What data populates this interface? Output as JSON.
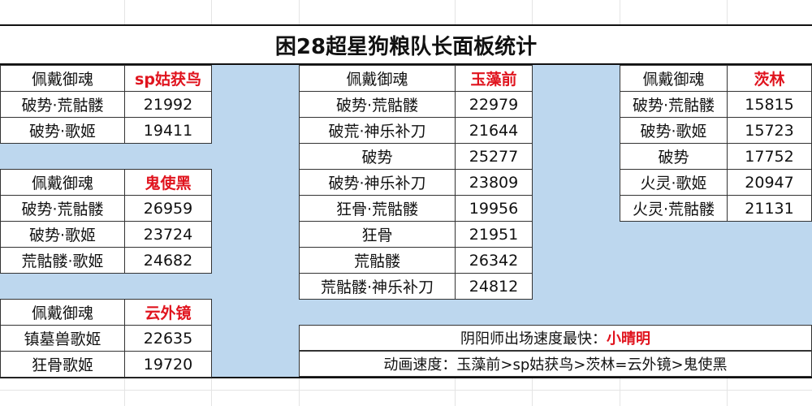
{
  "title": "困28超星狗粮队长面板统计",
  "header_label": "佩戴御魂",
  "tables": [
    {
      "character": "sp姑获鸟",
      "rows": [
        {
          "set": "破势·荒骷髅",
          "value": "21992"
        },
        {
          "set": "破势·歌姬",
          "value": "19411"
        }
      ]
    },
    {
      "character": "鬼使黑",
      "rows": [
        {
          "set": "破势·荒骷髅",
          "value": "26959"
        },
        {
          "set": "破势·歌姬",
          "value": "23724"
        },
        {
          "set": "荒骷髅·歌姬",
          "value": "24682"
        }
      ]
    },
    {
      "character": "云外镜",
      "rows": [
        {
          "set": "镇墓兽歌姬",
          "value": "22635"
        },
        {
          "set": "狂骨歌姬",
          "value": "19720"
        }
      ]
    },
    {
      "character": "玉藻前",
      "rows": [
        {
          "set": "破势·荒骷髅",
          "value": "22979"
        },
        {
          "set": "破荒·神乐补刀",
          "value": "21644"
        },
        {
          "set": "破势",
          "value": "25277"
        },
        {
          "set": "破势·神乐补刀",
          "value": "23809"
        },
        {
          "set": "狂骨·荒骷髅",
          "value": "19956"
        },
        {
          "set": "狂骨",
          "value": "21951"
        },
        {
          "set": "荒骷髅",
          "value": "26342"
        },
        {
          "set": "荒骷髅·神乐补刀",
          "value": "24812"
        }
      ]
    },
    {
      "character": "茨林",
      "rows": [
        {
          "set": "破势·荒骷髅",
          "value": "15815"
        },
        {
          "set": "破势·歌姬",
          "value": "15723"
        },
        {
          "set": "破势",
          "value": "17752"
        },
        {
          "set": "火灵·歌姬",
          "value": "20947"
        },
        {
          "set": "火灵·荒骷髅",
          "value": "21131"
        }
      ]
    }
  ],
  "notes": {
    "fastest_label": "阴阳师出场速度最快：",
    "fastest_value": "小晴明",
    "animation": "动画速度：玉藻前>sp姑获鸟>茨林=云外镜>鬼使黑"
  },
  "colors": {
    "background": "#bdd7ee",
    "highlight": "#e0141e"
  }
}
